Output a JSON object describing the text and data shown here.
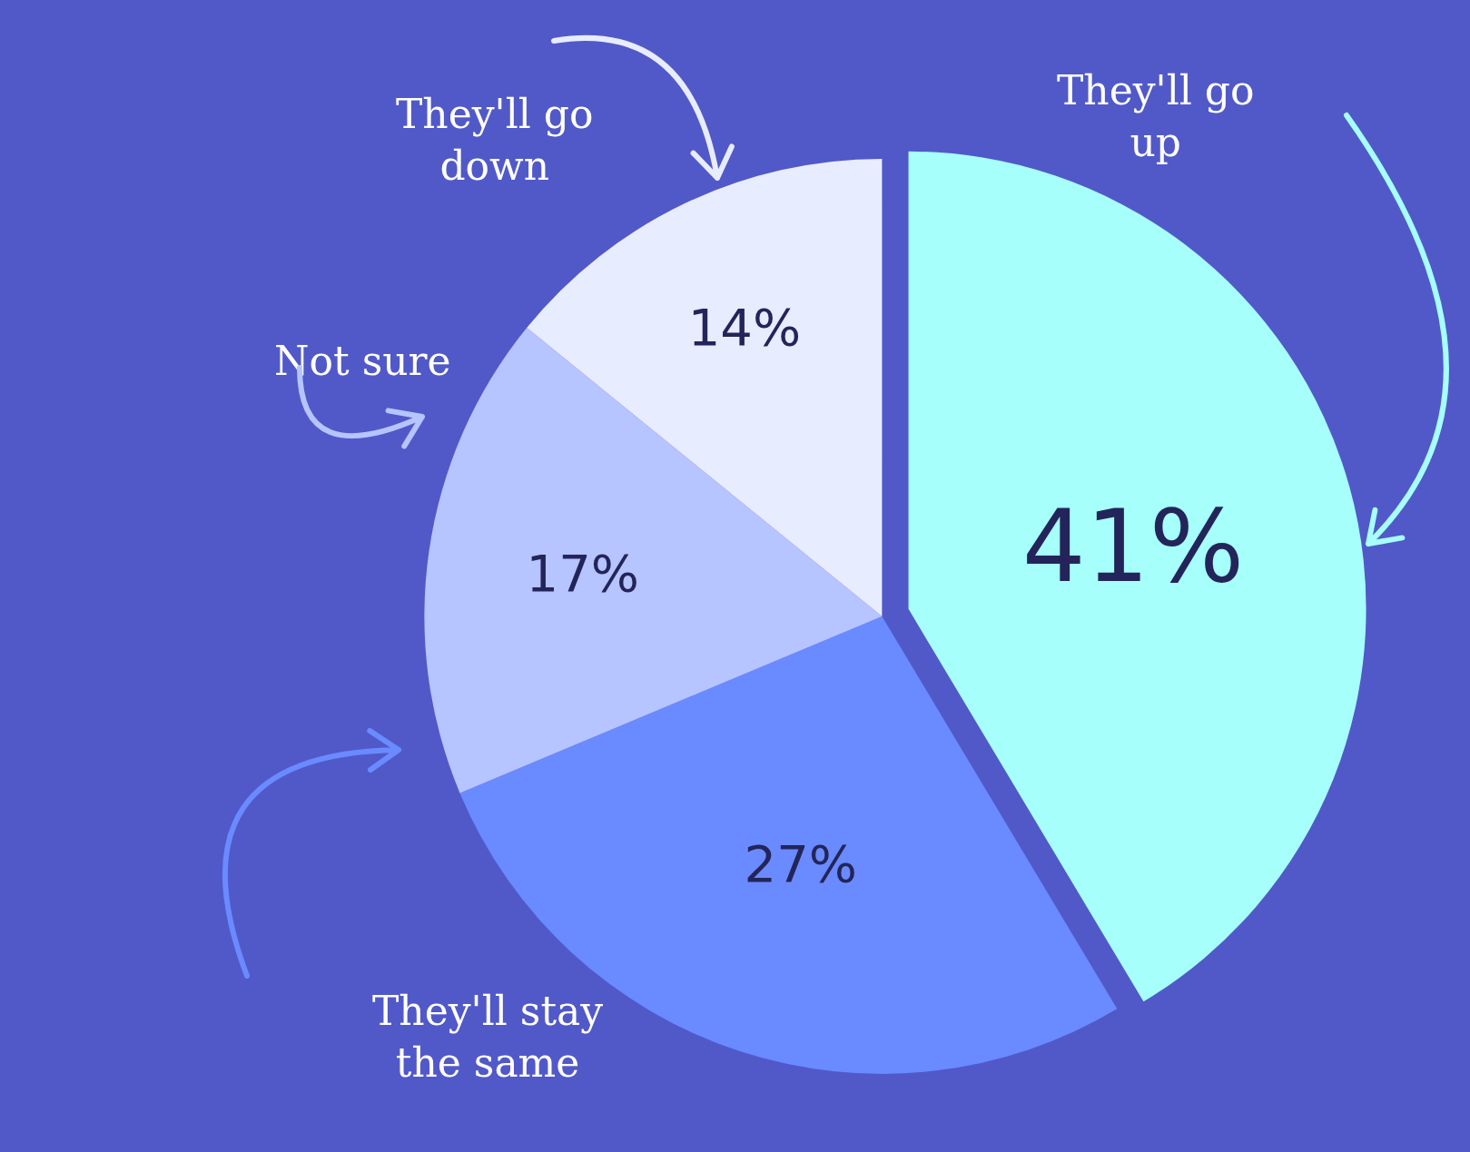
{
  "chart_data": {
    "type": "pie",
    "categories": [
      "They'll go up",
      "They'll stay the same",
      "Not sure",
      "They'll go down"
    ],
    "values": [
      41,
      27,
      17,
      14
    ],
    "colors": [
      "#a6fffb",
      "#6a8aff",
      "#b6c4ff",
      "#e8ecff"
    ],
    "value_labels": [
      "41%",
      "27%",
      "17%",
      "14%"
    ],
    "legend": false
  }
}
